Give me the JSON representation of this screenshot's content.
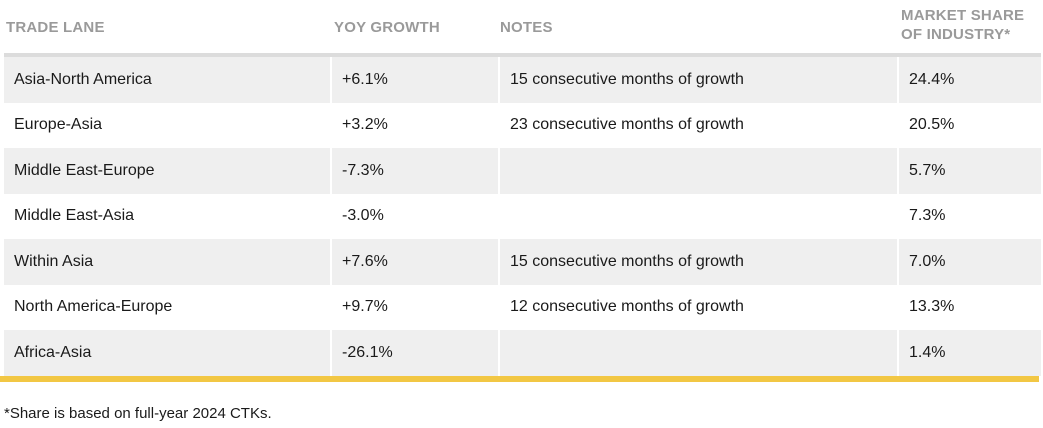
{
  "table": {
    "headers": {
      "lane": "TRADE LANE",
      "yoy": "YOY GROWTH",
      "notes": "NOTES",
      "share_line1": "MARKET SHARE",
      "share_line2": "OF INDUSTRY*"
    },
    "rows": [
      {
        "lane": "Asia-North America",
        "yoy": "+6.1%",
        "notes": "15 consecutive months of growth",
        "share": "24.4%"
      },
      {
        "lane": "Europe-Asia",
        "yoy": "+3.2%",
        "notes": "23 consecutive months of growth",
        "share": "20.5%"
      },
      {
        "lane": "Middle East-Europe",
        "yoy": "-7.3%",
        "notes": "",
        "share": "5.7%"
      },
      {
        "lane": "Middle East-Asia",
        "yoy": "-3.0%",
        "notes": "",
        "share": "7.3%"
      },
      {
        "lane": "Within Asia",
        "yoy": "+7.6%",
        "notes": "15 consecutive months of growth",
        "share": "7.0%"
      },
      {
        "lane": "North America-Europe",
        "yoy": "+9.7%",
        "notes": "12 consecutive months of growth",
        "share": "13.3%"
      },
      {
        "lane": "Africa-Asia",
        "yoy": "-26.1%",
        "notes": "",
        "share": "1.4%"
      }
    ]
  },
  "footnote": "*Share is based on full-year 2024 CTKs.",
  "colors": {
    "header_text": "#9a9a9a",
    "row_shade": "#efefef",
    "accent_rule": "#f2c744"
  }
}
